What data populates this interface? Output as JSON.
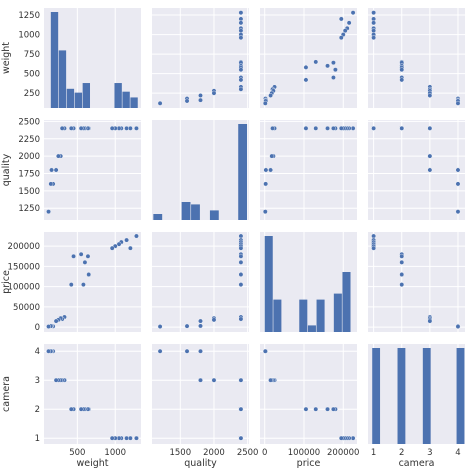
{
  "chart_data": {
    "type": "pairplot",
    "variables": [
      "weight",
      "quality",
      "price",
      "camera"
    ],
    "colors": {
      "background": "#eaeaf2",
      "grid": "#ffffff",
      "marker": "#4c72b0",
      "marker_edge": "#ffffff",
      "bar": "#4c72b0"
    },
    "grid": true,
    "axes": {
      "weight": {
        "label": "weight",
        "lim": [
          60,
          1340
        ],
        "ticks": [
          500,
          1000
        ],
        "tick_labels": [
          "500",
          "1000"
        ],
        "y_ticks": [
          250,
          500,
          750,
          1000,
          1250
        ],
        "y_tick_labels": [
          "250",
          "500",
          "750",
          "1000",
          "1250"
        ]
      },
      "quality": {
        "label": "quality",
        "lim": [
          1080,
          2520
        ],
        "ticks": [
          1500,
          2000,
          2500
        ],
        "tick_labels": [
          "1500",
          "2000",
          "2500"
        ],
        "y_ticks": [
          1250,
          1500,
          1750,
          2000,
          2250,
          2500
        ],
        "y_tick_labels": [
          "1250",
          "1500",
          "1750",
          "2000",
          "2250",
          "2500"
        ]
      },
      "price": {
        "label": "price",
        "lim": [
          -12000,
          235000
        ],
        "ticks": [
          0,
          100000,
          200000
        ],
        "tick_labels": [
          "0",
          "100000",
          "200000"
        ],
        "y_ticks": [
          0,
          50000,
          100000,
          150000,
          200000
        ],
        "y_tick_labels": [
          "0",
          "50000",
          "100000",
          "150000",
          "200000"
        ]
      },
      "camera": {
        "label": "camera",
        "lim": [
          0.8,
          4.25
        ],
        "ticks": [
          1,
          2,
          3,
          4
        ],
        "tick_labels": [
          "1",
          "2",
          "3",
          "4"
        ],
        "y_ticks": [
          1,
          2,
          3,
          4
        ],
        "y_tick_labels": [
          "1",
          "2",
          "3",
          "4"
        ]
      }
    },
    "points": [
      {
        "weight": 1280,
        "quality": 2400,
        "price": 225000,
        "camera": 1
      },
      {
        "weight": 1200,
        "quality": 2400,
        "price": 195000,
        "camera": 1
      },
      {
        "weight": 1150,
        "quality": 2400,
        "price": 215000,
        "camera": 1
      },
      {
        "weight": 1080,
        "quality": 2400,
        "price": 210000,
        "camera": 1
      },
      {
        "weight": 1050,
        "quality": 2400,
        "price": 205000,
        "camera": 1
      },
      {
        "weight": 1000,
        "quality": 2400,
        "price": 200000,
        "camera": 1
      },
      {
        "weight": 960,
        "quality": 2400,
        "price": 195000,
        "camera": 1
      },
      {
        "weight": 650,
        "quality": 2400,
        "price": 130000,
        "camera": 2
      },
      {
        "weight": 640,
        "quality": 2400,
        "price": 175000,
        "camera": 2
      },
      {
        "weight": 600,
        "quality": 2400,
        "price": 160000,
        "camera": 2
      },
      {
        "weight": 580,
        "quality": 2400,
        "price": 105000,
        "camera": 2
      },
      {
        "weight": 550,
        "quality": 2400,
        "price": 180000,
        "camera": 2
      },
      {
        "weight": 450,
        "quality": 2400,
        "price": 175000,
        "camera": 2
      },
      {
        "weight": 420,
        "quality": 2400,
        "price": 105000,
        "camera": 2
      },
      {
        "weight": 330,
        "quality": 2400,
        "price": 25000,
        "camera": 3
      },
      {
        "weight": 300,
        "quality": 2400,
        "price": 20000,
        "camera": 3
      },
      {
        "weight": 280,
        "quality": 2000,
        "price": 22000,
        "camera": 3
      },
      {
        "weight": 250,
        "quality": 2000,
        "price": 18000,
        "camera": 3
      },
      {
        "weight": 220,
        "quality": 1800,
        "price": 15000,
        "camera": 3
      },
      {
        "weight": 180,
        "quality": 1600,
        "price": 2000,
        "camera": 4
      },
      {
        "weight": 160,
        "quality": 1800,
        "price": 3000,
        "camera": 4
      },
      {
        "weight": 150,
        "quality": 1600,
        "price": 2500,
        "camera": 4
      },
      {
        "weight": 120,
        "quality": 1200,
        "price": 1500,
        "camera": 4
      }
    ],
    "histograms": {
      "weight": {
        "edges": [
          150,
          255,
          360,
          465,
          570,
          675,
          780,
          885,
          990,
          1095,
          1200,
          1305
        ],
        "counts": [
          5,
          3,
          1,
          0.8,
          1.3,
          0,
          0,
          0,
          1.3,
          0.85,
          0.55
        ]
      },
      "quality": {
        "edges": [
          1100,
          1240,
          1380,
          1520,
          1660,
          1800,
          1940,
          2080,
          2220,
          2360,
          2500
        ],
        "counts": [
          1,
          0,
          0,
          3,
          2.6,
          0,
          1.6,
          0,
          0,
          16
        ]
      },
      "price": {
        "edges": [
          0,
          22000,
          44000,
          66000,
          88000,
          110000,
          132000,
          154000,
          176000,
          198000,
          220000
        ],
        "counts": [
          8,
          2.7,
          0,
          0,
          2.7,
          0.55,
          2.7,
          0,
          3.2,
          5
        ]
      },
      "camera": {
        "edges": [
          0.95,
          1.25,
          1.55,
          1.85,
          2.15,
          2.45,
          2.75,
          3.05,
          3.35,
          3.65,
          3.95,
          4.25
        ],
        "counts": [
          1,
          0,
          0,
          1,
          0,
          0,
          1,
          0,
          0,
          0,
          1
        ]
      }
    }
  }
}
